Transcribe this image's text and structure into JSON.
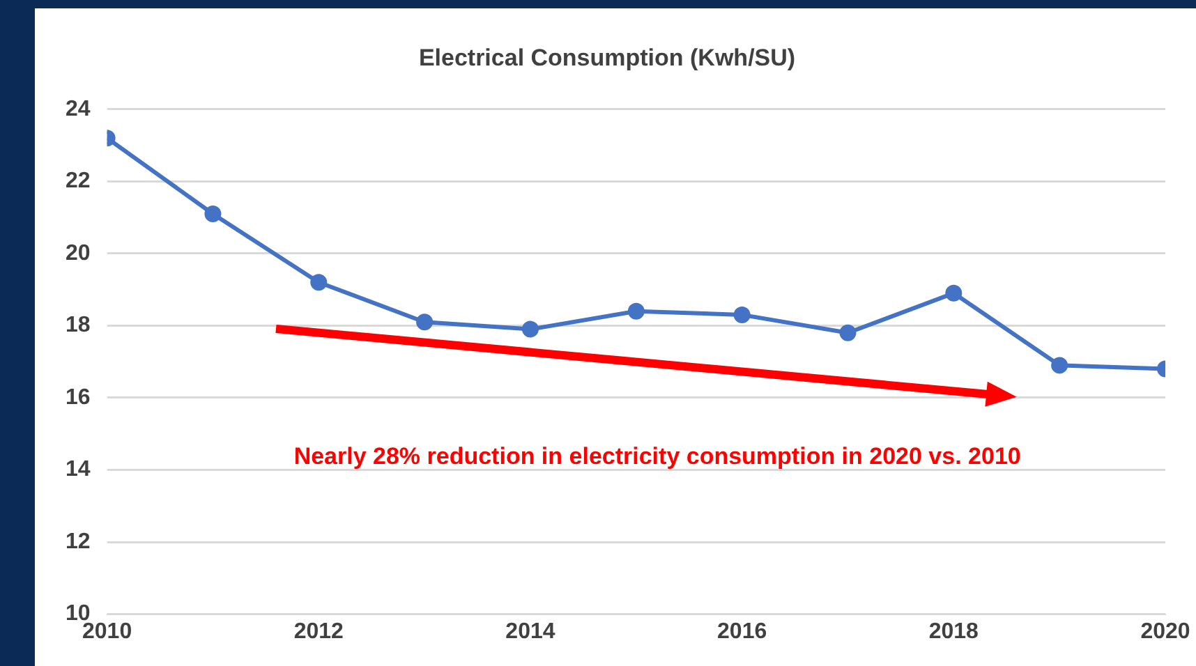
{
  "chart_data": {
    "type": "line",
    "title": "Electrical Consumption (Kwh/SU)",
    "x": [
      2010,
      2011,
      2012,
      2013,
      2014,
      2015,
      2016,
      2017,
      2018,
      2019,
      2020
    ],
    "series": [
      {
        "color": "#4472c4",
        "values": [
          23.2,
          21.1,
          19.2,
          18.1,
          17.9,
          18.4,
          18.3,
          17.8,
          18.9,
          16.9,
          16.8
        ]
      }
    ],
    "xlim": [
      2010,
      2020
    ],
    "xticks": [
      2010,
      2012,
      2014,
      2016,
      2018,
      2020
    ],
    "ylim": [
      10,
      24
    ],
    "yticks": [
      10,
      12,
      14,
      16,
      18,
      20,
      22,
      24
    ],
    "grid": "y",
    "legend": false,
    "marker": "circle",
    "line_style": "solid",
    "annotations": [
      "Nearly 28% reduction in electricity consumption in 2020 vs. 2010"
    ]
  }
}
